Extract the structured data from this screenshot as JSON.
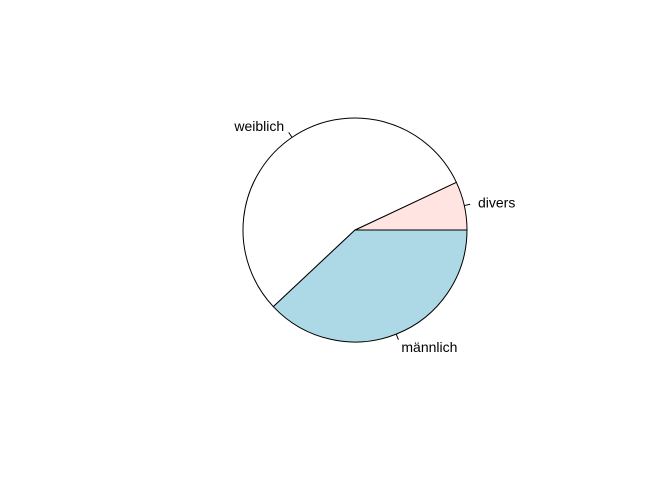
{
  "chart_data": {
    "type": "pie",
    "title": "",
    "direction": "counter-clockwise",
    "start": "3 o'clock",
    "categories": [
      "divers",
      "weiblich",
      "männlich"
    ],
    "values": [
      0.07,
      0.55,
      0.38
    ],
    "colors": [
      "#ffe4e1",
      "#ffffff",
      "#add8e6"
    ],
    "border_color": "#000000"
  }
}
